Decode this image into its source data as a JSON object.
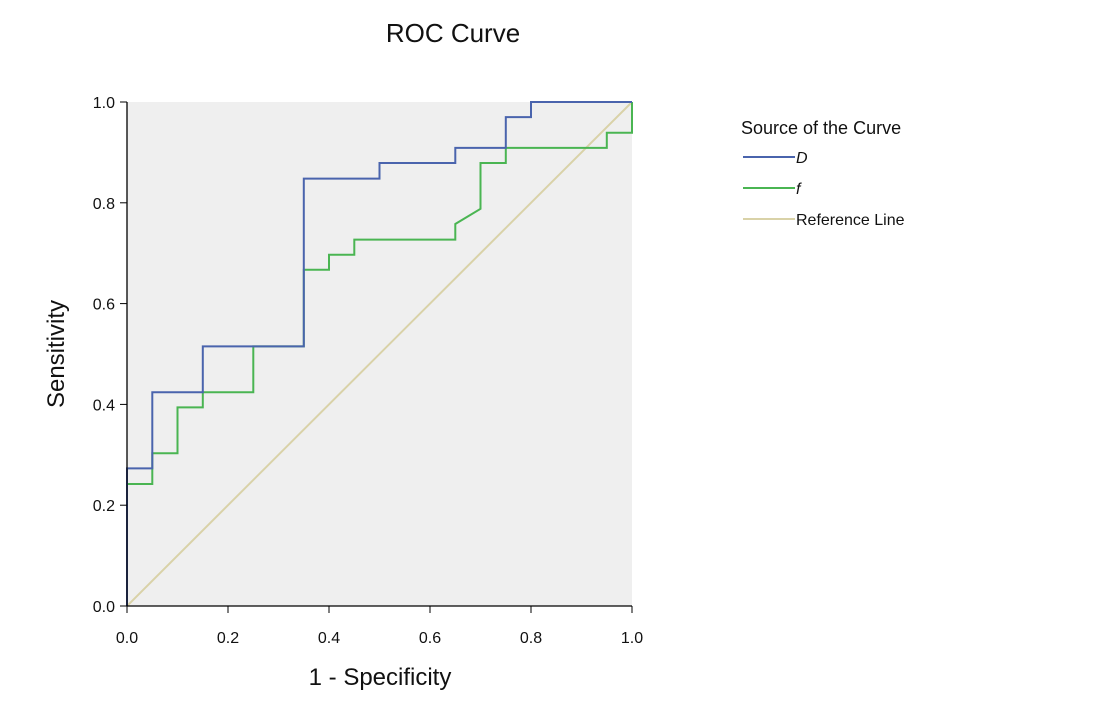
{
  "chart_data": {
    "type": "line",
    "title": "ROC Curve",
    "xlabel": "1 - Specificity",
    "ylabel": "Sensitivity",
    "xlim": [
      0,
      1
    ],
    "ylim": [
      0,
      1
    ],
    "xticks": [
      "0.0",
      "0.2",
      "0.4",
      "0.6",
      "0.8",
      "1.0"
    ],
    "yticks": [
      "0.0",
      "0.2",
      "0.4",
      "0.6",
      "0.8",
      "1.0"
    ],
    "grid": false,
    "background": "#efefef",
    "legend": {
      "title": "Source of the Curve",
      "position": "right"
    },
    "series": [
      {
        "name": "D",
        "italic": true,
        "color": "#4a64ad",
        "points": [
          [
            0,
            0
          ],
          [
            0,
            0.273
          ],
          [
            0.05,
            0.273
          ],
          [
            0.05,
            0.424
          ],
          [
            0.15,
            0.424
          ],
          [
            0.15,
            0.515
          ],
          [
            0.35,
            0.515
          ],
          [
            0.35,
            0.848
          ],
          [
            0.5,
            0.848
          ],
          [
            0.5,
            0.879
          ],
          [
            0.65,
            0.879
          ],
          [
            0.65,
            0.909
          ],
          [
            0.75,
            0.909
          ],
          [
            0.75,
            0.97
          ],
          [
            0.8,
            0.97
          ],
          [
            0.8,
            1.0
          ],
          [
            1.0,
            1.0
          ]
        ]
      },
      {
        "name": "f",
        "italic": true,
        "color": "#4ab552",
        "points": [
          [
            0,
            0
          ],
          [
            0,
            0.242
          ],
          [
            0.05,
            0.242
          ],
          [
            0.05,
            0.303
          ],
          [
            0.1,
            0.303
          ],
          [
            0.1,
            0.394
          ],
          [
            0.15,
            0.394
          ],
          [
            0.15,
            0.424
          ],
          [
            0.25,
            0.424
          ],
          [
            0.25,
            0.515
          ],
          [
            0.35,
            0.515
          ],
          [
            0.35,
            0.667
          ],
          [
            0.4,
            0.667
          ],
          [
            0.4,
            0.697
          ],
          [
            0.45,
            0.697
          ],
          [
            0.45,
            0.727
          ],
          [
            0.65,
            0.727
          ],
          [
            0.65,
            0.758
          ],
          [
            0.7,
            0.788
          ],
          [
            0.7,
            0.879
          ],
          [
            0.75,
            0.879
          ],
          [
            0.75,
            0.909
          ],
          [
            0.95,
            0.909
          ],
          [
            0.95,
            0.939
          ],
          [
            1.0,
            0.939
          ],
          [
            1.0,
            1.0
          ]
        ]
      },
      {
        "name": "Reference Line",
        "italic": false,
        "color": "#d9d2a8",
        "points": [
          [
            0,
            0
          ],
          [
            1,
            1
          ]
        ]
      }
    ]
  }
}
